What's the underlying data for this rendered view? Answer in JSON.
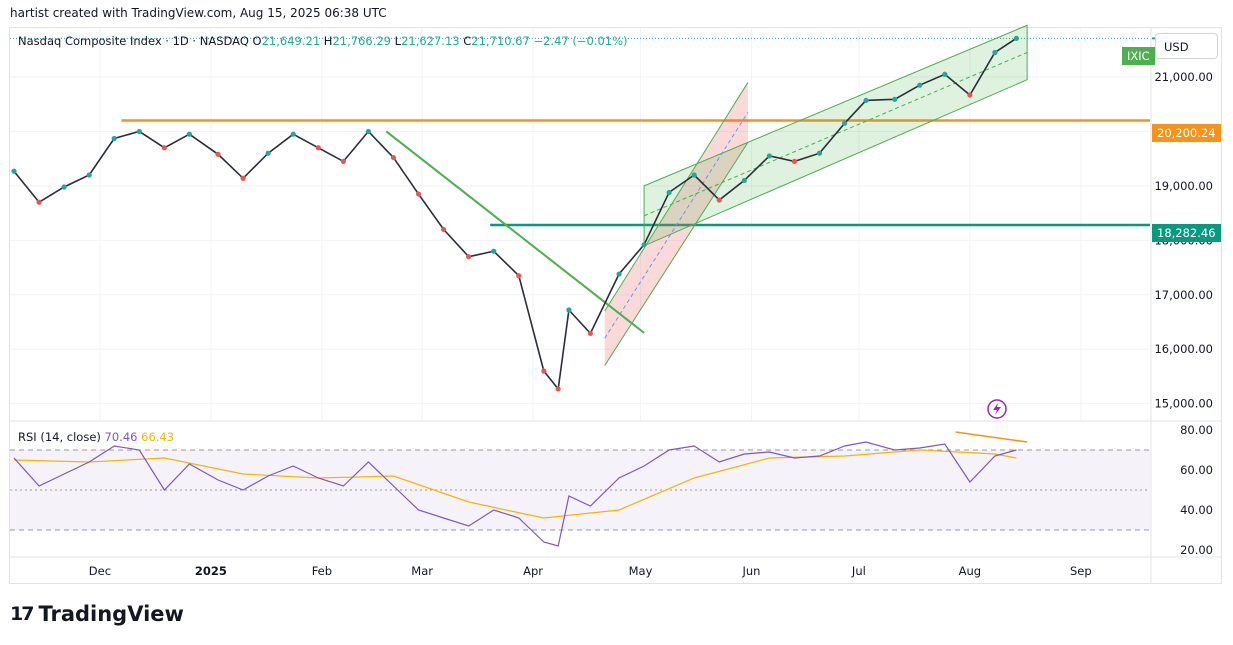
{
  "header_text": "hartist created with TradingView.com, Aug 15, 2025 06:38 UTC",
  "instrument": "Nasdaq Composite Index · 1D · NASDAQ",
  "ohlc": {
    "o_label": "O",
    "o": "21,649.21",
    "h_label": "H",
    "h": "21,766.29",
    "l_label": "L",
    "l": "21,627.13",
    "c_label": "C",
    "c": "21,710.67",
    "change": "−2.47 (−0.01%)"
  },
  "currency_button": "USD",
  "symbol_tag": "IXIC",
  "level_labels": {
    "orange": "20,200.24",
    "green": "18,282.46"
  },
  "rsi_legend": {
    "name": "RSI (14, close)",
    "rsi": "70.46",
    "ma": "66.43"
  },
  "brand": "TradingView",
  "colors": {
    "up": "#26a69a",
    "down": "#ef5350",
    "orange": "#f7931a",
    "teal": "#089981",
    "trend": "#4caf50",
    "rsi": "#7e57c2",
    "rsi_ma": "#f7b500"
  },
  "chart_data": [
    {
      "type": "line",
      "title": "Nasdaq Composite Index · 1D · NASDAQ",
      "price_axis_ticks": [
        "21,000.00",
        "20,000.00",
        "19,000.00",
        "18,000.00",
        "17,000.00",
        "16,000.00",
        "15,000.00"
      ],
      "price_axis_values": [
        21000,
        20000,
        19000,
        18000,
        17000,
        16000,
        15000
      ],
      "x_ticks": [
        "Dec",
        "2025",
        "Feb",
        "Mar",
        "Apr",
        "May",
        "Jun",
        "Jul",
        "Aug",
        "Sep"
      ],
      "ylim": [
        14700,
        21900
      ],
      "horizontal_levels": [
        20200.24,
        18282.46
      ],
      "series": [
        {
          "x": [
            "Nov 7",
            "Nov 14",
            "Nov 21",
            "Nov 28",
            "Dec 5",
            "Dec 12",
            "Dec 19",
            "Dec 26",
            "Jan 3",
            "Jan 10",
            "Jan 17",
            "Jan 24",
            "Jan 31",
            "Feb 7",
            "Feb 14",
            "Feb 21",
            "Feb 28",
            "Mar 7",
            "Mar 14",
            "Mar 21",
            "Mar 28",
            "Apr 4",
            "Apr 8",
            "Apr 11",
            "Apr 17",
            "Apr 25",
            "May 2",
            "May 9",
            "May 16",
            "May 23",
            "May 30",
            "Jun 6",
            "Jun 13",
            "Jun 20",
            "Jun 27",
            "Jul 3",
            "Jul 11",
            "Jul 18",
            "Jul 25",
            "Aug 1",
            "Aug 8",
            "Aug 14"
          ],
          "values": [
            19270,
            18700,
            18980,
            19200,
            19870,
            20000,
            19700,
            19950,
            19580,
            19140,
            19600,
            19950,
            19700,
            19450,
            20000,
            19520,
            18850,
            18200,
            17700,
            17800,
            17350,
            15600,
            15270,
            16720,
            16290,
            17380,
            17920,
            18880,
            19200,
            18740,
            19100,
            19550,
            19450,
            19600,
            20150,
            20570,
            20590,
            20850,
            21050,
            20670,
            21450,
            21710
          ]
        }
      ]
    },
    {
      "type": "line",
      "title": "RSI (14, close)",
      "y_ticks": [
        "80.00",
        "60.00",
        "40.00",
        "20.00"
      ],
      "y_values": [
        80,
        60,
        40,
        20
      ],
      "ylim": [
        17,
        84
      ],
      "bands": [
        70,
        50,
        30
      ],
      "series": [
        {
          "name": "RSI",
          "x": [
            "Nov 7",
            "Nov 14",
            "Nov 21",
            "Nov 28",
            "Dec 5",
            "Dec 12",
            "Dec 19",
            "Dec 26",
            "Jan 3",
            "Jan 10",
            "Jan 17",
            "Jan 24",
            "Jan 31",
            "Feb 7",
            "Feb 14",
            "Feb 21",
            "Feb 28",
            "Mar 7",
            "Mar 14",
            "Mar 21",
            "Mar 28",
            "Apr 4",
            "Apr 8",
            "Apr 11",
            "Apr 17",
            "Apr 25",
            "May 2",
            "May 9",
            "May 16",
            "May 23",
            "May 30",
            "Jun 6",
            "Jun 13",
            "Jun 20",
            "Jun 27",
            "Jul 3",
            "Jul 11",
            "Jul 18",
            "Jul 25",
            "Aug 1",
            "Aug 8",
            "Aug 14"
          ],
          "values": [
            66,
            52,
            58,
            64,
            72,
            70,
            50,
            63,
            55,
            50,
            57,
            62,
            56,
            52,
            64,
            52,
            40,
            36,
            32,
            40,
            36,
            24,
            22,
            47,
            42,
            56,
            62,
            70,
            72,
            64,
            68,
            69,
            66,
            67,
            72,
            74,
            70,
            71,
            73,
            54,
            67,
            70
          ]
        },
        {
          "name": "RSI MA",
          "x": [
            "Nov 7",
            "Nov 28",
            "Dec 19",
            "Jan 10",
            "Jan 31",
            "Feb 21",
            "Mar 14",
            "Apr 4",
            "Apr 25",
            "May 16",
            "Jun 6",
            "Jun 27",
            "Jul 18",
            "Aug 8",
            "Aug 14"
          ],
          "values": [
            65,
            64,
            66,
            58,
            56,
            57,
            44,
            36,
            40,
            56,
            66,
            67,
            70,
            68,
            66
          ]
        }
      ]
    }
  ]
}
